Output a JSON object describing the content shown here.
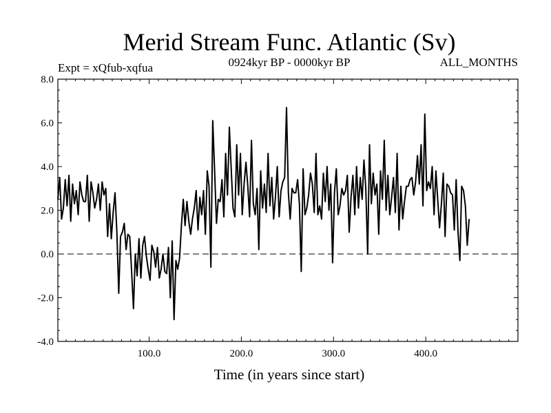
{
  "colors": {
    "background": "#ffffff",
    "axis": "#000000",
    "series": "#000000",
    "zero_line": "#000000"
  },
  "chart_data": {
    "type": "line",
    "title": "Merid Stream Func. Atlantic (Sv)",
    "subtitle_left": "Expt = xQfub-xqfua",
    "subtitle_center": "0924kyr BP - 0000kyr BP",
    "subtitle_right": "ALL_MONTHS",
    "xlabel": "Time (in years since start)",
    "ylabel": "",
    "xlim": [
      1,
      500
    ],
    "ylim": [
      -4,
      8
    ],
    "x_ticks": [
      100,
      200,
      300,
      400
    ],
    "x_tick_labels": [
      "100.0",
      "200.0",
      "300.0",
      "400.0"
    ],
    "y_ticks": [
      -4,
      -2,
      0,
      2,
      4,
      6,
      8
    ],
    "y_tick_labels": [
      "-4.0",
      "-2.0",
      "0.0",
      "2.0",
      "4.0",
      "6.0",
      "8.0"
    ],
    "reference_line": {
      "y": 0,
      "style": "dashed"
    },
    "series": [
      {
        "name": "Merid Stream Func. Atlantic",
        "x_start": 1,
        "x_step": 2,
        "values": [
          2.5,
          3.5,
          1.6,
          2.1,
          3.4,
          2.2,
          3.6,
          1.5,
          3.2,
          2.3,
          2.9,
          1.8,
          3.3,
          2.7,
          2.4,
          2.4,
          3.6,
          1.5,
          3.3,
          2.8,
          2.1,
          2.5,
          3.2,
          2.0,
          3.3,
          2.7,
          3.0,
          0.8,
          2.3,
          0.7,
          1.9,
          2.8,
          1.0,
          -1.8,
          0.8,
          1.0,
          1.4,
          0.2,
          0.9,
          0.8,
          -0.8,
          -2.5,
          0.0,
          -1.0,
          0.7,
          -1.1,
          0.4,
          0.8,
          -0.1,
          -0.7,
          -1.2,
          0.4,
          0.1,
          -0.6,
          0.3,
          -1.1,
          -0.7,
          0.0,
          -0.8,
          -0.9,
          0.3,
          -2.0,
          0.6,
          -3.0,
          -0.3,
          -0.7,
          -0.2,
          1.3,
          2.5,
          1.3,
          2.4,
          1.5,
          0.9,
          1.6,
          2.1,
          2.9,
          1.1,
          2.6,
          1.8,
          2.9,
          0.9,
          3.8,
          3.1,
          -0.6,
          6.1,
          3.8,
          1.4,
          2.5,
          2.4,
          3.4,
          1.7,
          4.6,
          2.7,
          5.8,
          3.9,
          2.1,
          1.7,
          5.0,
          2.7,
          4.6,
          1.8,
          3.2,
          4.2,
          3.1,
          1.7,
          5.2,
          2.3,
          1.8,
          3.0,
          0.2,
          3.8,
          2.1,
          3.2,
          1.9,
          4.6,
          2.2,
          3.5,
          1.6,
          2.6,
          4.0,
          1.7,
          2.9,
          3.3,
          3.5,
          6.7,
          2.8,
          1.6,
          3.0,
          2.8,
          2.8,
          3.4,
          2.3,
          -0.8,
          3.9,
          1.8,
          2.1,
          2.7,
          3.7,
          3.2,
          1.9,
          4.6,
          1.8,
          2.2,
          1.6,
          3.7,
          2.4,
          4.0,
          2.0,
          3.2,
          -0.4,
          2.8,
          3.9,
          1.8,
          2.2,
          3.0,
          2.7,
          2.9,
          3.6,
          1.0,
          2.6,
          3.6,
          1.8,
          4.0,
          2.1,
          3.5,
          2.5,
          4.3,
          3.0,
          0.0,
          5.0,
          2.3,
          3.7,
          2.7,
          3.2,
          0.9,
          3.8,
          2.5,
          5.2,
          2.0,
          3.6,
          1.8,
          2.6,
          3.5,
          1.9,
          4.6,
          1.1,
          3.1,
          1.6,
          2.4,
          3.1,
          3.1,
          3.4,
          3.5,
          2.7,
          3.3,
          4.5,
          3.2,
          5.0,
          2.2,
          6.4,
          2.9,
          3.3,
          3.0,
          4.0,
          1.8,
          3.8,
          2.5,
          1.2,
          2.3,
          3.7,
          0.8,
          3.2,
          3.1,
          2.8,
          2.7,
          1.1,
          3.4,
          1.0,
          -0.3,
          3.1,
          2.9,
          2.2,
          0.4,
          1.6
        ]
      }
    ]
  }
}
